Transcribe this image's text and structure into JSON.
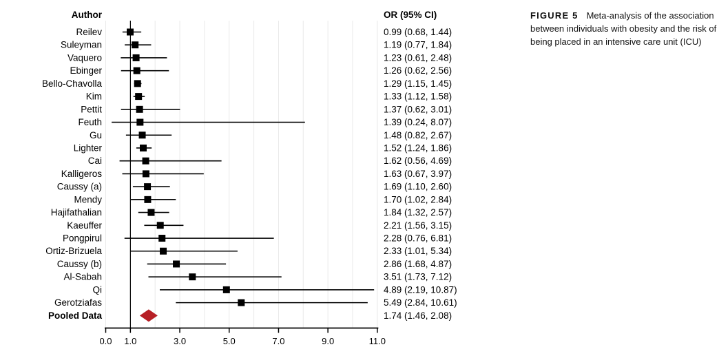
{
  "figure": {
    "label": "FIGURE 5",
    "caption": "Meta-analysis of the association between individuals with obesity and the risk of being placed in an intensive care unit (ICU)"
  },
  "chart_data": {
    "type": "forest",
    "column_headers": {
      "left": "Author",
      "right": "OR (95% CI)"
    },
    "xlim": [
      0,
      11
    ],
    "gridline_interval": 1,
    "reference_line": 1.0,
    "grid_on": true,
    "x_ticks": {
      "values": [
        0,
        1,
        3,
        5,
        7,
        9,
        11
      ],
      "labels": [
        "0.0",
        "1.0",
        "3.0",
        "5.0",
        "7.0",
        "9.0",
        "11.0"
      ]
    },
    "rows": [
      {
        "author": "Reilev",
        "or": 0.99,
        "ci": [
          0.68,
          1.44
        ],
        "label": "0.99 (0.68, 1.44)",
        "pooled": false
      },
      {
        "author": "Suleyman",
        "or": 1.19,
        "ci": [
          0.77,
          1.84
        ],
        "label": "1.19 (0.77, 1.84)",
        "pooled": false
      },
      {
        "author": "Vaquero",
        "or": 1.23,
        "ci": [
          0.61,
          2.48
        ],
        "label": "1.23 (0.61, 2.48)",
        "pooled": false
      },
      {
        "author": "Ebinger",
        "or": 1.26,
        "ci": [
          0.62,
          2.56
        ],
        "label": "1.26 (0.62, 2.56)",
        "pooled": false
      },
      {
        "author": "Bello-Chavolla",
        "or": 1.29,
        "ci": [
          1.15,
          1.45
        ],
        "label": "1.29 (1.15, 1.45)",
        "pooled": false
      },
      {
        "author": "Kim",
        "or": 1.33,
        "ci": [
          1.12,
          1.58
        ],
        "label": "1.33 (1.12, 1.58)",
        "pooled": false
      },
      {
        "author": "Pettit",
        "or": 1.37,
        "ci": [
          0.62,
          3.01
        ],
        "label": "1.37 (0.62, 3.01)",
        "pooled": false
      },
      {
        "author": "Feuth",
        "or": 1.39,
        "ci": [
          0.24,
          8.07
        ],
        "label": "1.39 (0.24, 8.07)",
        "pooled": false
      },
      {
        "author": "Gu",
        "or": 1.48,
        "ci": [
          0.82,
          2.67
        ],
        "label": "1.48 (0.82, 2.67)",
        "pooled": false
      },
      {
        "author": "Lighter",
        "or": 1.52,
        "ci": [
          1.24,
          1.86
        ],
        "label": "1.52 (1.24, 1.86)",
        "pooled": false
      },
      {
        "author": "Cai",
        "or": 1.62,
        "ci": [
          0.56,
          4.69
        ],
        "label": "1.62 (0.56, 4.69)",
        "pooled": false
      },
      {
        "author": "Kalligeros",
        "or": 1.63,
        "ci": [
          0.67,
          3.97
        ],
        "label": "1.63 (0.67, 3.97)",
        "pooled": false
      },
      {
        "author": "Caussy (a)",
        "or": 1.69,
        "ci": [
          1.1,
          2.6
        ],
        "label": "1.69 (1.10, 2.60)",
        "pooled": false
      },
      {
        "author": "Mendy",
        "or": 1.7,
        "ci": [
          1.02,
          2.84
        ],
        "label": "1.70 (1.02, 2.84)",
        "pooled": false
      },
      {
        "author": "Hajifathalian",
        "or": 1.84,
        "ci": [
          1.32,
          2.57
        ],
        "label": "1.84 (1.32, 2.57)",
        "pooled": false
      },
      {
        "author": "Kaeuffer",
        "or": 2.21,
        "ci": [
          1.56,
          3.15
        ],
        "label": "2.21 (1.56, 3.15)",
        "pooled": false
      },
      {
        "author": "Pongpirul",
        "or": 2.28,
        "ci": [
          0.76,
          6.81
        ],
        "label": "2.28 (0.76, 6.81)",
        "pooled": false
      },
      {
        "author": "Ortiz-Brizuela",
        "or": 2.33,
        "ci": [
          1.01,
          5.34
        ],
        "label": "2.33 (1.01, 5.34)",
        "pooled": false
      },
      {
        "author": "Caussy (b)",
        "or": 2.86,
        "ci": [
          1.68,
          4.87
        ],
        "label": "2.86 (1.68, 4.87)",
        "pooled": false
      },
      {
        "author": "Al-Sabah",
        "or": 3.51,
        "ci": [
          1.73,
          7.12
        ],
        "label": "3.51 (1.73, 7.12)",
        "pooled": false
      },
      {
        "author": "Qi",
        "or": 4.89,
        "ci": [
          2.19,
          10.87
        ],
        "label": "4.89 (2.19, 10.87)",
        "pooled": false
      },
      {
        "author": "Gerotziafas",
        "or": 5.49,
        "ci": [
          2.84,
          10.61
        ],
        "label": "5.49 (2.84, 10.61)",
        "pooled": false
      },
      {
        "author": "Pooled Data",
        "or": 1.74,
        "ci": [
          1.46,
          2.08
        ],
        "label": "1.74 (1.46, 2.08)",
        "pooled": true
      }
    ],
    "colors": {
      "marker": "#000000",
      "pooled_diamond": "#b71f25",
      "gridline": "#e9e9e9",
      "reference_line": "#000000",
      "axis": "#000000",
      "text": "#000000"
    }
  }
}
